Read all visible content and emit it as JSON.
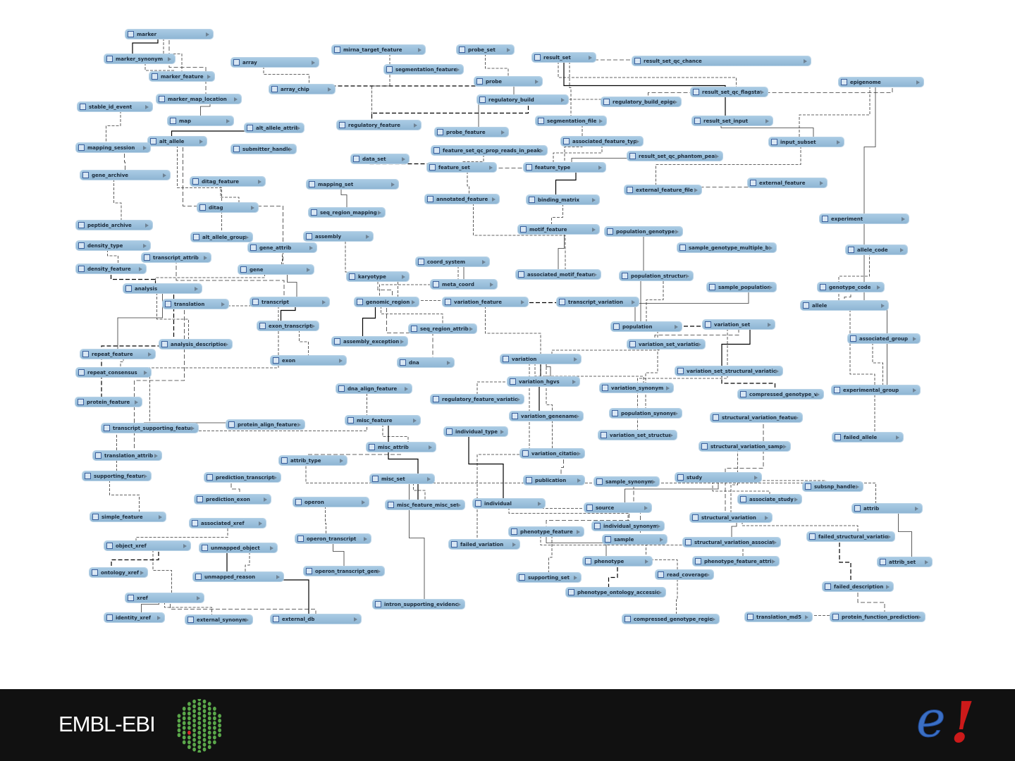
{
  "diagram": {
    "table_icon": "table-icon",
    "expand_icon": "expand-arrow-icon",
    "box_color": "#93bcd9",
    "tables": [
      "marker",
      "marker_synonym",
      "array",
      "mirna_target_feature",
      "probe_set",
      "result_set",
      "result_set_qc_chance",
      "segmentation_feature",
      "marker_feature",
      "probe",
      "epigenome",
      "array_chip",
      "result_set_qc_flagstats",
      "marker_map_location",
      "regulatory_build",
      "regulatory_build_epigenome",
      "stable_id_event",
      "map",
      "segmentation_file",
      "result_set_input",
      "regulatory_feature",
      "alt_allele_attrib",
      "probe_feature",
      "alt_allele",
      "associated_feature_type",
      "input_subset",
      "mapping_session",
      "submitter_handle",
      "feature_set_qc_prop_reads_in_peaks",
      "result_set_qc_phantom_peak",
      "data_set",
      "feature_set",
      "feature_type",
      "gene_archive",
      "ditag_feature",
      "mapping_set",
      "external_feature",
      "external_feature_file",
      "annotated_feature",
      "binding_matrix",
      "ditag",
      "seq_region_mapping",
      "experiment",
      "peptide_archive",
      "motif_feature",
      "population_genotype",
      "alt_allele_group",
      "assembly",
      "density_type",
      "gene_attrib",
      "sample_genotype_multiple_bp",
      "allele_code",
      "transcript_attrib",
      "coord_system",
      "density_feature",
      "gene",
      "karyotype",
      "associated_motif_feature",
      "population_structure",
      "meta_coord",
      "analysis",
      "sample_population",
      "genotype_code",
      "translation",
      "transcript",
      "genomic_region",
      "variation_feature",
      "transcript_variation",
      "allele",
      "exon_transcript",
      "seq_region_attrib",
      "population",
      "variation_set",
      "analysis_description",
      "assembly_exception",
      "variation_set_variation",
      "associated_group",
      "repeat_feature",
      "exon",
      "dna",
      "variation",
      "repeat_consensus",
      "variation_set_structural_variation",
      "variation_hgvs",
      "dna_align_feature",
      "variation_synonym",
      "experimental_group",
      "compressed_genotype_var",
      "regulatory_feature_variation",
      "protein_feature",
      "population_synonym",
      "variation_genename",
      "structural_variation_feature",
      "misc_feature",
      "protein_align_feature",
      "transcript_supporting_feature",
      "individual_type",
      "variation_set_structure",
      "failed_allele",
      "misc_attrib",
      "structural_variation_sample",
      "translation_attrib",
      "attrib_type",
      "variation_citation",
      "supporting_feature",
      "prediction_transcript",
      "misc_set",
      "publication",
      "sample_synonym",
      "study",
      "subsnp_handle",
      "associate_study",
      "prediction_exon",
      "operon",
      "misc_feature_misc_set",
      "individual",
      "source",
      "attrib",
      "simple_feature",
      "associated_xref",
      "structural_variation",
      "individual_synonym",
      "phenotype_feature",
      "operon_transcript",
      "failed_variation",
      "sample",
      "failed_structural_variation",
      "structural_variation_association",
      "object_xref",
      "unmapped_object",
      "phenotype",
      "phenotype_feature_attrib",
      "attrib_set",
      "operon_transcript_gene",
      "ontology_xref",
      "read_coverage",
      "unmapped_reason",
      "supporting_set",
      "failed_description",
      "phenotype_ontology_accession",
      "xref",
      "intron_supporting_evidence",
      "identity_xref",
      "external_synonym",
      "external_db",
      "translation_md5",
      "protein_function_predictions",
      "compressed_genotype_region"
    ],
    "relationships": [
      [
        "marker",
        "marker_synonym"
      ],
      [
        "marker",
        "marker_feature"
      ],
      [
        "marker",
        "marker_map_location"
      ],
      [
        "marker_synonym",
        "marker_feature"
      ],
      [
        "marker_map_location",
        "map"
      ],
      [
        "array",
        "array_chip"
      ],
      [
        "array_chip",
        "probe"
      ],
      [
        "probe_set",
        "probe"
      ],
      [
        "probe",
        "probe_feature"
      ],
      [
        "mirna_target_feature",
        "regulatory_feature"
      ],
      [
        "result_set",
        "result_set_qc_chance"
      ],
      [
        "result_set",
        "result_set_qc_flagstats"
      ],
      [
        "result_set",
        "result_set_input"
      ],
      [
        "result_set",
        "segmentation_file"
      ],
      [
        "epigenome",
        "regulatory_build_epigenome"
      ],
      [
        "epigenome",
        "input_subset"
      ],
      [
        "epigenome",
        "experiment"
      ],
      [
        "regulatory_build",
        "regulatory_build_epigenome"
      ],
      [
        "regulatory_build",
        "regulatory_feature"
      ],
      [
        "segmentation_file",
        "feature_type"
      ],
      [
        "result_set_input",
        "input_subset"
      ],
      [
        "input_subset",
        "external_feature_file"
      ],
      [
        "feature_set",
        "feature_type"
      ],
      [
        "feature_set",
        "annotated_feature"
      ],
      [
        "feature_type",
        "binding_matrix"
      ],
      [
        "feature_type",
        "associated_feature_type"
      ],
      [
        "external_feature",
        "external_feature_file"
      ],
      [
        "binding_matrix",
        "motif_feature"
      ],
      [
        "motif_feature",
        "associated_motif_feature"
      ],
      [
        "annotated_feature",
        "associated_motif_feature"
      ],
      [
        "data_set",
        "feature_set"
      ],
      [
        "feature_set_qc_prop_reads_in_peaks",
        "feature_set"
      ],
      [
        "result_set_qc_phantom_peak",
        "feature_type"
      ],
      [
        "stable_id_event",
        "mapping_session"
      ],
      [
        "mapping_session",
        "gene_archive"
      ],
      [
        "gene_archive",
        "peptide_archive"
      ],
      [
        "alt_allele",
        "alt_allele_attrib"
      ],
      [
        "alt_allele",
        "alt_allele_group"
      ],
      [
        "alt_allele",
        "gene"
      ],
      [
        "ditag",
        "ditag_feature"
      ],
      [
        "mapping_set",
        "seq_region_mapping"
      ],
      [
        "density_type",
        "density_feature"
      ],
      [
        "density_feature",
        "analysis"
      ],
      [
        "gene",
        "gene_attrib"
      ],
      [
        "gene",
        "transcript"
      ],
      [
        "gene",
        "analysis"
      ],
      [
        "transcript",
        "transcript_attrib"
      ],
      [
        "transcript",
        "translation"
      ],
      [
        "transcript",
        "exon_transcript"
      ],
      [
        "exon_transcript",
        "exon"
      ],
      [
        "translation",
        "translation_attrib"
      ],
      [
        "analysis",
        "analysis_description"
      ],
      [
        "analysis",
        "repeat_feature"
      ],
      [
        "repeat_feature",
        "repeat_consensus"
      ],
      [
        "analysis",
        "protein_feature"
      ],
      [
        "transcript",
        "transcript_supporting_feature"
      ],
      [
        "transcript_supporting_feature",
        "protein_align_feature"
      ],
      [
        "supporting_feature",
        "dna_align_feature"
      ],
      [
        "genomic_region",
        "karyotype"
      ],
      [
        "genomic_region",
        "assembly"
      ],
      [
        "genomic_region",
        "assembly_exception"
      ],
      [
        "genomic_region",
        "seq_region_attrib"
      ],
      [
        "genomic_region",
        "dna"
      ],
      [
        "coord_system",
        "genomic_region"
      ],
      [
        "coord_system",
        "meta_coord"
      ],
      [
        "genomic_region",
        "variation_feature"
      ],
      [
        "variation_feature",
        "transcript_variation"
      ],
      [
        "variation_feature",
        "variation"
      ],
      [
        "variation",
        "variation_hgvs"
      ],
      [
        "variation",
        "variation_set_variation"
      ],
      [
        "variation_set_variation",
        "variation_set"
      ],
      [
        "variation",
        "variation_synonym"
      ],
      [
        "variation",
        "variation_genename"
      ],
      [
        "variation",
        "variation_citation"
      ],
      [
        "variation_citation",
        "publication"
      ],
      [
        "variation",
        "failed_variation"
      ],
      [
        "population",
        "population_genotype"
      ],
      [
        "population",
        "population_structure"
      ],
      [
        "population",
        "variation_set"
      ],
      [
        "population",
        "population_synonym"
      ],
      [
        "population",
        "sample_population"
      ],
      [
        "allele",
        "allele_code"
      ],
      [
        "allele",
        "genotype_code"
      ],
      [
        "allele",
        "failed_allele"
      ],
      [
        "variation_set",
        "variation_set_structural_variation"
      ],
      [
        "variation_set",
        "variation_set_structure"
      ],
      [
        "structural_variation",
        "structural_variation_feature"
      ],
      [
        "structural_variation",
        "structural_variation_sample"
      ],
      [
        "structural_variation",
        "structural_variation_association"
      ],
      [
        "structural_variation",
        "failed_structural_variation"
      ],
      [
        "failed_structural_variation",
        "failed_description"
      ],
      [
        "study",
        "associate_study"
      ],
      [
        "study",
        "source"
      ],
      [
        "study",
        "subsnp_handle"
      ],
      [
        "source",
        "phenotype_feature"
      ],
      [
        "source",
        "individual"
      ],
      [
        "individual",
        "individual_type"
      ],
      [
        "individual",
        "individual_synonym"
      ],
      [
        "sample",
        "sample_synonym"
      ],
      [
        "sample",
        "read_coverage"
      ],
      [
        "phenotype",
        "phenotype_feature"
      ],
      [
        "phenotype_feature",
        "phenotype_feature_attrib"
      ],
      [
        "phenotype",
        "phenotype_ontology_accession"
      ],
      [
        "phenotype_feature",
        "supporting_set"
      ],
      [
        "attrib",
        "attrib_set"
      ],
      [
        "attrib",
        "attrib_type"
      ],
      [
        "attrib_type",
        "misc_attrib"
      ],
      [
        "misc_feature",
        "misc_attrib"
      ],
      [
        "misc_feature",
        "misc_feature_misc_set"
      ],
      [
        "misc_set",
        "misc_feature_misc_set"
      ],
      [
        "prediction_transcript",
        "prediction_exon"
      ],
      [
        "operon",
        "operon_transcript"
      ],
      [
        "operon_transcript",
        "operon_transcript_gene"
      ],
      [
        "object_xref",
        "xref"
      ],
      [
        "object_xref",
        "ontology_xref"
      ],
      [
        "object_xref",
        "associated_xref"
      ],
      [
        "xref",
        "identity_xref"
      ],
      [
        "xref",
        "external_synonym"
      ],
      [
        "xref",
        "external_db"
      ],
      [
        "unmapped_object",
        "unmapped_reason"
      ],
      [
        "unmapped_object",
        "external_db"
      ],
      [
        "translation_md5",
        "protein_function_predictions"
      ],
      [
        "failed_description",
        "protein_function_predictions"
      ],
      [
        "compressed_genotype_region",
        "read_coverage"
      ],
      [
        "experimental_group",
        "experiment"
      ],
      [
        "associated_group",
        "experimental_group"
      ],
      [
        "compressed_genotype_var",
        "variation_set_structural_variation"
      ],
      [
        "regulatory_feature_variation",
        "variation"
      ],
      [
        "intron_supporting_evidence",
        "misc_set"
      ],
      [
        "simple_feature",
        "supporting_feature"
      ]
    ]
  },
  "footer": {
    "embl_ebi_logo": "EMBL-EBI",
    "ensembl_logo": "e!",
    "embl_green": "#5aa74a",
    "ensembl_blue": "#3b6fc4",
    "ensembl_red": "#cc1a1a"
  }
}
